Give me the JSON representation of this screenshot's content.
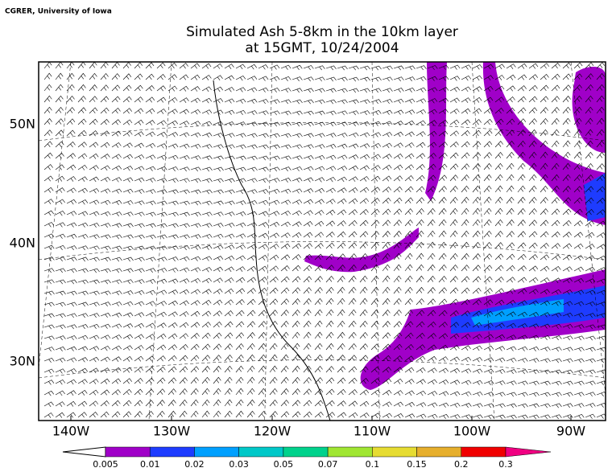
{
  "credit": "CGRER, University of Iowa",
  "title": [
    "Simulated Ash 5-8km in the 10km layer",
    "at 15GMT, 10/24/2004"
  ],
  "longitude_labels": [
    "140W",
    "130W",
    "120W",
    "110W",
    "100W",
    "90W"
  ],
  "latitude_labels": [
    "50N",
    "40N",
    "30N"
  ],
  "colorbar": {
    "levels": [
      0.005,
      0.01,
      0.02,
      0.03,
      0.05,
      0.07,
      0.1,
      0.15,
      0.2,
      0.3
    ],
    "colors": [
      "#ffffff",
      "#a000c8",
      "#1e3cff",
      "#00a0ff",
      "#00c8c8",
      "#00d28c",
      "#a0e632",
      "#e6dc32",
      "#e6af2d",
      "#f00000",
      "#f00082"
    ]
  }
}
